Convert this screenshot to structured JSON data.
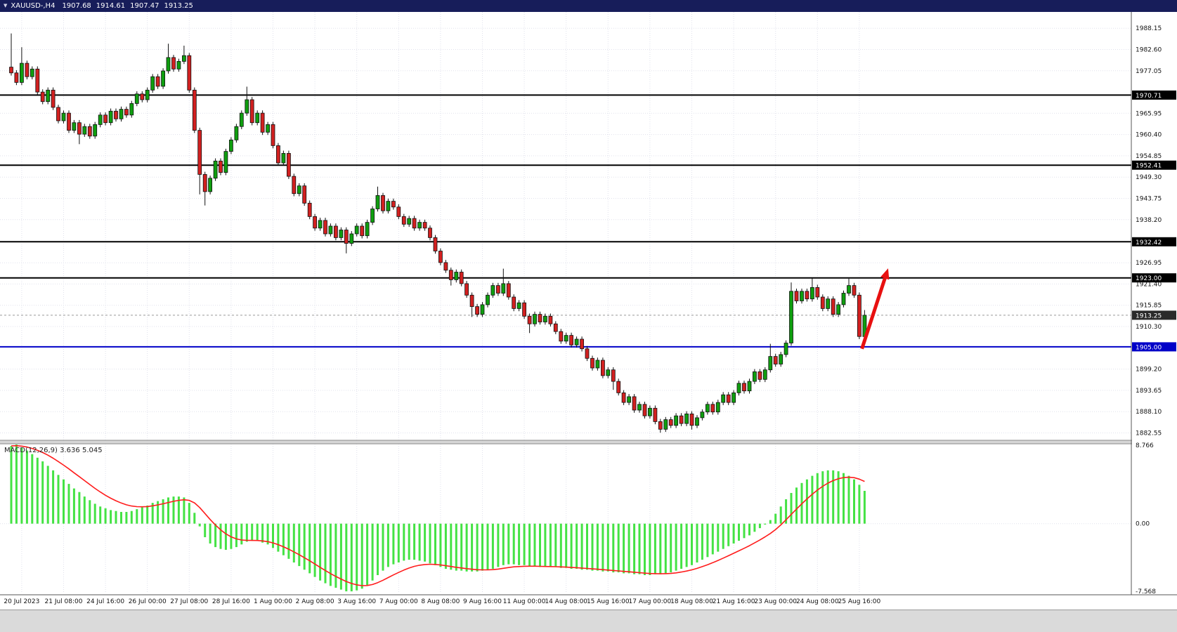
{
  "titlebar": {
    "symbol": "XAUUSD-,H4",
    "open": "1907.68",
    "high": "1914.61",
    "low": "1907.47",
    "close": "1913.25",
    "bg_color": "#171d5a"
  },
  "chart_data": {
    "type": "candlestick",
    "symbol": "XAUUSD",
    "timeframe": "H4",
    "colors": {
      "up": "#0f9e0f",
      "down": "#d22020",
      "wick": "#111111",
      "grid": "#e0e1ec",
      "background": "#ffffff"
    },
    "price_axis": {
      "ticks": [
        "1988.15",
        "1982.60",
        "1977.05",
        "1965.95",
        "1960.40",
        "1954.85",
        "1949.30",
        "1943.75",
        "1938.20",
        "1926.95",
        "1921.40",
        "1915.85",
        "1910.30",
        "1899.20",
        "1893.65",
        "1888.10",
        "1882.55"
      ]
    },
    "hlines": [
      {
        "value": 1970.71,
        "label": "1970.71",
        "color": "#000000",
        "width": 2
      },
      {
        "value": 1952.41,
        "label": "1952.41",
        "color": "#000000",
        "width": 2
      },
      {
        "value": 1932.42,
        "label": "1932.42",
        "color": "#000000",
        "width": 2
      },
      {
        "value": 1923.0,
        "label": "1923.00",
        "color": "#000000",
        "width": 2
      },
      {
        "value": 1905.0,
        "label": "1905.00",
        "color": "#0000c8",
        "width": 2
      }
    ],
    "current_price": {
      "value": 1913.25,
      "label": "1913.25",
      "box_color": "#2a2a2a"
    },
    "arrow": {
      "from": {
        "bar": 162.5,
        "price": 1904.5
      },
      "to": {
        "bar": 167.5,
        "price": 1925.5
      },
      "color": "#e81010"
    },
    "x_axis": {
      "first_label_bar": 2,
      "bar_step": 8,
      "labels": [
        "20 Jul 2023",
        "21 Jul 08:00",
        "24 Jul 16:00",
        "26 Jul 00:00",
        "27 Jul 08:00",
        "28 Jul 16:00",
        "1 Aug 00:00",
        "2 Aug 08:00",
        "3 Aug 16:00",
        "7 Aug 00:00",
        "8 Aug 08:00",
        "9 Aug 16:00",
        "11 Aug 00:00",
        "14 Aug 08:00",
        "15 Aug 16:00",
        "17 Aug 00:00",
        "18 Aug 08:00",
        "21 Aug 16:00",
        "23 Aug 00:00",
        "24 Aug 08:00",
        "25 Aug 16:00"
      ]
    },
    "candles": {
      "first_open": 1978.0,
      "default_wick": 0.7,
      "closes": [
        1976.5,
        1974.0,
        1979.0,
        1975.5,
        1977.5,
        1971.5,
        1969.0,
        1972.0,
        1967.5,
        1964.0,
        1966.0,
        1961.5,
        1963.5,
        1960.5,
        1962.5,
        1960.0,
        1963.0,
        1965.5,
        1963.5,
        1966.5,
        1964.5,
        1967.0,
        1965.5,
        1968.5,
        1971.0,
        1969.5,
        1972.0,
        1975.5,
        1973.0,
        1977.0,
        1980.5,
        1977.5,
        1979.5,
        1981.0,
        1972.0,
        1961.5,
        1950.0,
        1945.5,
        1949.0,
        1953.5,
        1950.5,
        1956.0,
        1959.0,
        1962.5,
        1966.0,
        1969.5,
        1963.5,
        1966.0,
        1961.0,
        1963.0,
        1957.5,
        1953.0,
        1955.5,
        1949.5,
        1945.0,
        1947.0,
        1942.5,
        1939.0,
        1936.0,
        1938.0,
        1934.5,
        1936.5,
        1933.5,
        1935.5,
        1932.0,
        1934.5,
        1936.5,
        1934.0,
        1937.5,
        1941.0,
        1944.5,
        1940.5,
        1943.0,
        1941.5,
        1939.0,
        1937.0,
        1938.5,
        1936.0,
        1937.5,
        1936.0,
        1933.5,
        1930.0,
        1927.0,
        1925.0,
        1922.5,
        1924.5,
        1921.5,
        1918.5,
        1915.5,
        1913.5,
        1916.0,
        1918.5,
        1921.0,
        1919.0,
        1921.5,
        1918.0,
        1915.0,
        1916.5,
        1913.0,
        1911.0,
        1913.5,
        1911.5,
        1913.0,
        1911.0,
        1909.0,
        1906.5,
        1908.0,
        1905.5,
        1907.0,
        1904.5,
        1902.0,
        1899.5,
        1901.5,
        1897.5,
        1899.0,
        1896.0,
        1893.0,
        1890.5,
        1892.0,
        1888.5,
        1890.0,
        1887.0,
        1889.0,
        1885.5,
        1883.5,
        1886.0,
        1884.5,
        1887.0,
        1885.0,
        1887.5,
        1884.5,
        1886.5,
        1888.0,
        1890.0,
        1888.0,
        1890.5,
        1892.5,
        1890.5,
        1893.0,
        1895.5,
        1893.5,
        1896.0,
        1898.5,
        1896.5,
        1899.0,
        1902.5,
        1900.5,
        1903.0,
        1906.0,
        1919.5,
        1917.0,
        1919.5,
        1917.5,
        1920.5,
        1918.0,
        1915.0,
        1917.5,
        1913.5,
        1916.0,
        1919.0,
        1921.0,
        1918.5,
        1907.7,
        1913.25
      ],
      "overrides": {
        "0": {
          "h": 1986.8
        },
        "2": {
          "h": 1983.2
        },
        "13": {
          "l": 1957.9
        },
        "30": {
          "h": 1984.1
        },
        "33": {
          "h": 1983.6
        },
        "36": {
          "l": 1944.8
        },
        "37": {
          "l": 1941.9
        },
        "45": {
          "h": 1972.9
        },
        "64": {
          "l": 1929.4
        },
        "70": {
          "h": 1946.8
        },
        "84": {
          "l": 1921.0
        },
        "88": {
          "l": 1912.8
        },
        "94": {
          "h": 1925.4
        },
        "99": {
          "l": 1908.6
        },
        "115": {
          "l": 1893.8
        },
        "124": {
          "l": 1882.6
        },
        "130": {
          "l": 1883.4
        },
        "145": {
          "h": 1905.8
        },
        "149": {
          "h": 1921.8
        },
        "153": {
          "h": 1922.9
        },
        "160": {
          "h": 1922.8
        },
        "163": {
          "o": 1907.68,
          "h": 1914.61,
          "l": 1907.47
        }
      }
    },
    "macd": {
      "label": "MACD(12,26,9)",
      "macd_value": "3.636",
      "signal_value": "5.045",
      "scale_max": 8.766,
      "scale_min": -7.568,
      "scale_max_label": "8.766",
      "zero_label": "0.00",
      "scale_min_label": "-7.568",
      "signal_period": 9,
      "colors": {
        "histogram": "#44e244",
        "signal": "#ff1c1c"
      },
      "histogram": [
        8.6,
        8.766,
        8.4,
        8.1,
        7.7,
        7.3,
        6.9,
        6.4,
        5.9,
        5.4,
        4.9,
        4.4,
        3.9,
        3.5,
        3.0,
        2.6,
        2.2,
        1.9,
        1.7,
        1.5,
        1.4,
        1.3,
        1.3,
        1.4,
        1.6,
        1.8,
        2.0,
        2.3,
        2.5,
        2.7,
        2.9,
        3.0,
        3.0,
        2.9,
        2.3,
        1.2,
        -0.3,
        -1.5,
        -2.2,
        -2.6,
        -2.8,
        -2.9,
        -2.8,
        -2.6,
        -2.3,
        -2.0,
        -1.9,
        -1.9,
        -2.1,
        -2.3,
        -2.7,
        -3.1,
        -3.5,
        -3.9,
        -4.3,
        -4.7,
        -5.1,
        -5.5,
        -5.9,
        -6.3,
        -6.6,
        -6.9,
        -7.1,
        -7.3,
        -7.5,
        -7.5,
        -7.4,
        -7.2,
        -6.8,
        -6.3,
        -5.7,
        -5.2,
        -4.8,
        -4.5,
        -4.3,
        -4.1,
        -4.0,
        -4.0,
        -4.1,
        -4.2,
        -4.4,
        -4.6,
        -4.8,
        -5.0,
        -5.1,
        -5.2,
        -5.2,
        -5.3,
        -5.3,
        -5.3,
        -5.2,
        -5.1,
        -5.0,
        -4.8,
        -4.6,
        -4.5,
        -4.5,
        -4.6,
        -4.6,
        -4.7,
        -4.7,
        -4.8,
        -4.8,
        -4.8,
        -4.8,
        -4.9,
        -4.9,
        -5.0,
        -5.0,
        -5.1,
        -5.1,
        -5.2,
        -5.2,
        -5.3,
        -5.3,
        -5.4,
        -5.4,
        -5.5,
        -5.5,
        -5.6,
        -5.6,
        -5.7,
        -5.7,
        -5.6,
        -5.6,
        -5.5,
        -5.4,
        -5.2,
        -5.0,
        -4.8,
        -4.6,
        -4.3,
        -4.0,
        -3.7,
        -3.4,
        -3.1,
        -2.8,
        -2.5,
        -2.2,
        -1.9,
        -1.6,
        -1.3,
        -0.9,
        -0.5,
        -0.1,
        0.4,
        1.1,
        1.9,
        2.7,
        3.4,
        4.0,
        4.5,
        4.9,
        5.3,
        5.6,
        5.8,
        5.9,
        5.9,
        5.8,
        5.6,
        5.3,
        4.9,
        4.3,
        3.636
      ]
    }
  }
}
